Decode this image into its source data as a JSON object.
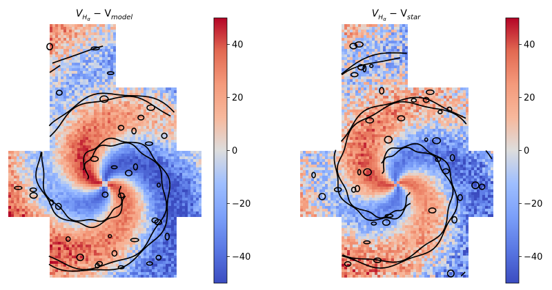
{
  "chart_data": [
    {
      "type": "heatmap",
      "title": {
        "base": "V",
        "sub1": "H",
        "sub2": "α",
        "rest": " − V",
        "sub3": "model"
      },
      "colorbar": {
        "vmin": -50,
        "vmax": 50,
        "ticks": [
          40,
          20,
          0,
          -20,
          -40
        ],
        "tick_labels": [
          "40",
          "20",
          "0",
          "−20",
          "−40"
        ],
        "cmap": "coolwarm"
      },
      "spiral_rotation": 0.0,
      "arm_amplitude": 40,
      "background_gradient": -25,
      "outer_noise": 22
    },
    {
      "type": "heatmap",
      "title": {
        "base": "V",
        "sub1": "H",
        "sub2": "α",
        "rest": " − V",
        "sub3": "star"
      },
      "colorbar": {
        "vmin": -50,
        "vmax": 50,
        "ticks": [
          40,
          20,
          0,
          -20,
          -40
        ],
        "tick_labels": [
          "40",
          "20",
          "0",
          "−20",
          "−40"
        ],
        "cmap": "coolwarm"
      },
      "spiral_rotation": 0.25,
      "arm_amplitude": 34,
      "background_gradient": -18,
      "outer_noise": 30
    }
  ],
  "colors": {
    "cmap_low": "#3b4cc0",
    "cmap_mid": "#dddddd",
    "cmap_high": "#b40426",
    "contour": "#000000"
  }
}
